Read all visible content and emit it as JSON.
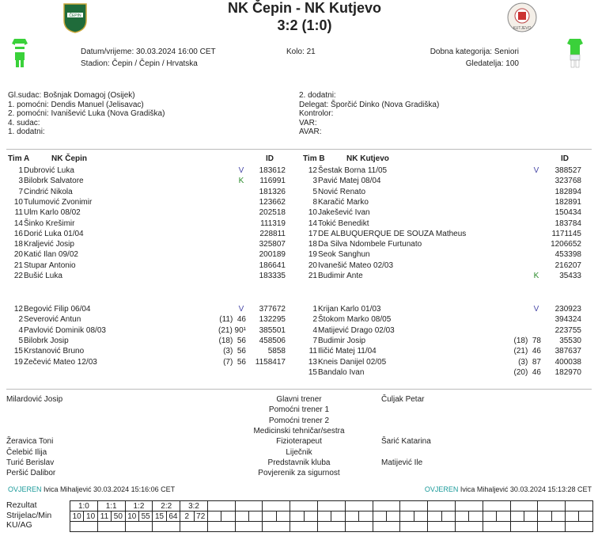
{
  "header": {
    "title": "NK Čepin - NK Kutjevo",
    "score": "3:2 (1:0)",
    "date": "Datum/vrijeme: 30.03.2024 16:00 CET",
    "stadium": "Stadion: Čepin / Čepin / Hrvatska",
    "round": "Kolo: 21",
    "category": "Dobna kategorija: Seniori",
    "attendance": "Gledatelja: 100",
    "home_logo": "ČEPIN",
    "away_logo": "KUTJEVO"
  },
  "officials": {
    "left": [
      "Gl.sudac: Bošnjak Domagoj (Osijek)",
      "1. pomoćni: Dendis Manuel (Jelisavac)",
      "2. pomoćni: Ivanišević Luka (Nova  Gradiška)",
      "4. sudac:",
      "1. dodatni:"
    ],
    "right": [
      "2. dodatni:",
      "Delegat: Šporčić Dinko (Nova Gradiška)",
      "Kontrolor:",
      "VAR:",
      "AVAR:"
    ]
  },
  "team_a": {
    "label": "Tim A",
    "name": "NK Čepin",
    "id_header": "ID",
    "starters": [
      [
        "1",
        "Dubrović Luka",
        "V",
        "",
        "183612"
      ],
      [
        "3",
        "Bilobrk Salvatore",
        "K",
        "",
        "116991"
      ],
      [
        "7",
        "Cindrić Nikola",
        "",
        "",
        "181326"
      ],
      [
        "10",
        "Tulumović Zvonimir",
        "",
        "",
        "123662"
      ],
      [
        "11",
        "Ulm Karlo 08/02",
        "",
        "",
        "202518"
      ],
      [
        "14",
        "Šinko Krešimir",
        "",
        "",
        "111319"
      ],
      [
        "16",
        "Dorić Luka 01/04",
        "",
        "",
        "228811"
      ],
      [
        "18",
        "Kraljević Josip",
        "",
        "",
        "325807"
      ],
      [
        "20",
        "Katić Ilan 09/02",
        "",
        "",
        "200189"
      ],
      [
        "21",
        "Stupar Antonio",
        "",
        "",
        "186641"
      ],
      [
        "22",
        "Bušić Luka",
        "",
        "",
        "183335"
      ]
    ],
    "subs": [
      [
        "12",
        "Begović Filip 06/04",
        "V",
        "",
        "377672"
      ],
      [
        "2",
        "Severović Antun",
        "",
        "(11)  46",
        "132295"
      ],
      [
        "4",
        "Pavlović Dominik 08/03",
        "",
        "(21) 90¹",
        "385501"
      ],
      [
        "5",
        "Bilobrk Josip",
        "",
        "(18)  56",
        "458506"
      ],
      [
        "15",
        "Krstanović Bruno",
        "",
        "(3)  56",
        "5858"
      ],
      [
        "19",
        "Zečević Mateo 12/03",
        "",
        "(7)  56",
        "1158417"
      ]
    ]
  },
  "team_b": {
    "label": "Tim B",
    "name": "NK Kutjevo",
    "id_header": "ID",
    "starters": [
      [
        "12",
        "Šestak Borna 11/05",
        "V",
        "",
        "388527"
      ],
      [
        "3",
        "Pavić Matej 08/04",
        "",
        "",
        "323768"
      ],
      [
        "5",
        "Nović Renato",
        "",
        "",
        "182894"
      ],
      [
        "8",
        "Karačić Marko",
        "",
        "",
        "182891"
      ],
      [
        "10",
        "Jakešević Ivan",
        "",
        "",
        "150434"
      ],
      [
        "14",
        "Tokić Benedikt",
        "",
        "",
        "183784"
      ],
      [
        "17",
        "DE ALBUQUERQUE DE SOUZA Matheus",
        "",
        "",
        "1171145"
      ],
      [
        "18",
        "Da Silva Ndombele Furtunato",
        "",
        "",
        "1206652"
      ],
      [
        "19",
        "Seok Sanghun",
        "",
        "",
        "453398"
      ],
      [
        "20",
        "Ivanešić Mateo 02/03",
        "",
        "",
        "216207"
      ],
      [
        "21",
        "Budimir Ante",
        "K",
        "",
        "35433"
      ]
    ],
    "subs": [
      [
        "1",
        "Krijan Karlo 01/03",
        "V",
        "",
        "230923"
      ],
      [
        "2",
        "Štokom Marko 08/05",
        "",
        "",
        "394324"
      ],
      [
        "4",
        "Matijević Drago 02/03",
        "",
        "",
        "223755"
      ],
      [
        "7",
        "Budimir Josip",
        "",
        "(18)  78",
        "35530"
      ],
      [
        "11",
        "Iličić Matej 11/04",
        "",
        "(21)  46",
        "387637"
      ],
      [
        "13",
        "Kneis Danijel 02/05",
        "",
        "(3)  87",
        "400038"
      ],
      [
        "15",
        "Bandalo  Ivan",
        "",
        "(20)  46",
        "182970"
      ]
    ]
  },
  "staff": [
    [
      "Milardović Josip",
      "Glavni trener",
      "Čuljak Petar"
    ],
    [
      "",
      "Pomoćni trener 1",
      ""
    ],
    [
      "",
      "Pomoćni trener 2",
      ""
    ],
    [
      "",
      "Medicinski tehničar/sestra",
      ""
    ],
    [
      "Žeravica Toni",
      "Fizioterapeut",
      "Šarić Katarina"
    ],
    [
      "Čelebić Ilija",
      "Liječnik",
      ""
    ],
    [
      "Turić Berislav",
      "Predstavnik kluba",
      "Matijević Ile"
    ],
    [
      "Peršić Dalibor",
      "Povjerenik za sigurnost",
      ""
    ]
  ],
  "verify": {
    "status": "OVJEREN",
    "left": "Ivica Mihaljević 30.03.2024 15:16:06 CET",
    "right": "Ivica Mihaljević 30.03.2024 15:13:28 CET"
  },
  "scoring": {
    "labels": [
      "Rezultat",
      "Strijelac/Min",
      "KU/AG"
    ],
    "results": [
      "1:0",
      "1:1",
      "1:2",
      "2:2",
      "3:2"
    ],
    "scorers": [
      [
        "10",
        "10"
      ],
      [
        "11",
        "50"
      ],
      [
        "10",
        "55"
      ],
      [
        "15",
        "64"
      ],
      [
        "2",
        "72"
      ]
    ]
  },
  "colors": {
    "verified": "#1a9a9a",
    "captain": "#2a8a2a",
    "goalkeeper": "#4a4aa8",
    "kit_green": "#3ad13a"
  }
}
